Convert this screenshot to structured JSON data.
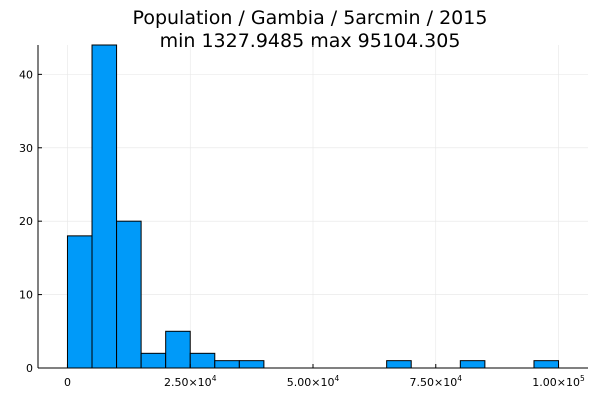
{
  "chart_data": {
    "type": "bar",
    "subtype": "histogram",
    "title": "Population / Gambia / 5arcmin / 2015",
    "subtitle": "min 1327.9485  max 95104.305",
    "xlabel": "",
    "ylabel": "",
    "bin_width": 5000,
    "bins": [
      {
        "x0": 0,
        "x1": 5000,
        "count": 18
      },
      {
        "x0": 5000,
        "x1": 10000,
        "count": 44
      },
      {
        "x0": 10000,
        "x1": 15000,
        "count": 20
      },
      {
        "x0": 15000,
        "x1": 20000,
        "count": 2
      },
      {
        "x0": 20000,
        "x1": 25000,
        "count": 5
      },
      {
        "x0": 25000,
        "x1": 30000,
        "count": 2
      },
      {
        "x0": 30000,
        "x1": 35000,
        "count": 1
      },
      {
        "x0": 35000,
        "x1": 40000,
        "count": 1
      },
      {
        "x0": 65000,
        "x1": 70000,
        "count": 1
      },
      {
        "x0": 80000,
        "x1": 85000,
        "count": 1
      },
      {
        "x0": 95000,
        "x1": 100000,
        "count": 1
      }
    ],
    "xlim": [
      -6000,
      106000
    ],
    "ylim": [
      0,
      44
    ],
    "x_ticks": [
      {
        "value": 0,
        "mantissa": "0",
        "exponent": ""
      },
      {
        "value": 25000,
        "mantissa": "2.50×10",
        "exponent": "4"
      },
      {
        "value": 50000,
        "mantissa": "5.00×10",
        "exponent": "4"
      },
      {
        "value": 75000,
        "mantissa": "7.50×10",
        "exponent": "4"
      },
      {
        "value": 100000,
        "mantissa": "1.00×10",
        "exponent": "5"
      }
    ],
    "y_ticks": [
      {
        "value": 0,
        "label": "0"
      },
      {
        "value": 10,
        "label": "10"
      },
      {
        "value": 20,
        "label": "20"
      },
      {
        "value": 30,
        "label": "30"
      },
      {
        "value": 40,
        "label": "40"
      }
    ],
    "grid": true,
    "legend": false,
    "colors": {
      "bar_fill": "#009af9",
      "bar_stroke": "#000000",
      "grid": "#e6e6e6",
      "axis": "#000000"
    }
  }
}
